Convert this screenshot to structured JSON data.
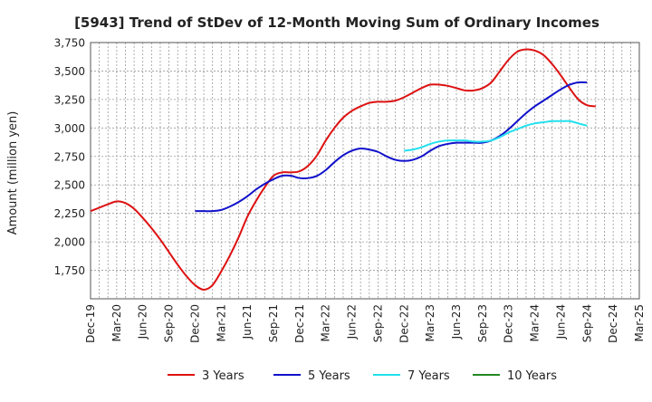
{
  "chart_data": {
    "type": "line",
    "title": "[5943]  Trend of StDev of 12-Month Moving Sum of Ordinary Incomes",
    "ylabel": "Amount (million yen)",
    "xlabel": "",
    "ylim": [
      1500,
      3750
    ],
    "yticks": [
      1750,
      2000,
      2250,
      2500,
      2750,
      3000,
      3250,
      3500,
      3750
    ],
    "ytick_labels": [
      "1,750",
      "2,000",
      "2,250",
      "2,500",
      "2,750",
      "3,000",
      "3,250",
      "3,500",
      "3,750"
    ],
    "x_start": "Dec-19",
    "x_end": "Mar-25",
    "xtick_labels": [
      "Dec-19",
      "Mar-20",
      "Jun-20",
      "Sep-20",
      "Dec-20",
      "Mar-21",
      "Jun-21",
      "Sep-21",
      "Dec-21",
      "Mar-22",
      "Jun-22",
      "Sep-22",
      "Dec-22",
      "Mar-23",
      "Jun-23",
      "Sep-23",
      "Dec-23",
      "Mar-24",
      "Jun-24",
      "Sep-24",
      "Dec-24",
      "Mar-25"
    ],
    "grid": true,
    "legend_position": "bottom",
    "series": [
      {
        "name": "3 Years",
        "color": "#dd1111",
        "start": "Dec-19",
        "values": [
          2270,
          2300,
          2330,
          2355,
          2340,
          2290,
          2210,
          2120,
          2020,
          1910,
          1800,
          1700,
          1620,
          1580,
          1620,
          1740,
          1880,
          2040,
          2220,
          2360,
          2480,
          2580,
          2610,
          2610,
          2620,
          2670,
          2760,
          2890,
          3000,
          3090,
          3150,
          3190,
          3220,
          3230,
          3230,
          3240,
          3270,
          3310,
          3350,
          3380,
          3380,
          3370,
          3350,
          3330,
          3330,
          3350,
          3400,
          3500,
          3600,
          3670,
          3690,
          3680,
          3640,
          3560,
          3460,
          3350,
          3250,
          3200,
          3190
        ]
      },
      {
        "name": "5 Years",
        "color": "#1111cc",
        "start": "Dec-20",
        "values": [
          2270,
          2270,
          2270,
          2280,
          2310,
          2350,
          2400,
          2460,
          2510,
          2550,
          2580,
          2580,
          2560,
          2560,
          2580,
          2630,
          2700,
          2760,
          2800,
          2820,
          2810,
          2790,
          2750,
          2720,
          2710,
          2720,
          2750,
          2800,
          2840,
          2860,
          2870,
          2870,
          2870,
          2870,
          2890,
          2930,
          2990,
          3060,
          3130,
          3190,
          3240,
          3290,
          3340,
          3380,
          3400,
          3400
        ]
      },
      {
        "name": "7 Years",
        "color": "#22e0ee",
        "start": "Dec-22",
        "values": [
          2800,
          2810,
          2830,
          2860,
          2880,
          2890,
          2890,
          2890,
          2880,
          2880,
          2890,
          2920,
          2960,
          2990,
          3020,
          3040,
          3050,
          3060,
          3060,
          3060,
          3040,
          3020
        ]
      },
      {
        "name": "10 Years",
        "color": "#228822",
        "start": "Dec-24",
        "values": []
      }
    ]
  }
}
